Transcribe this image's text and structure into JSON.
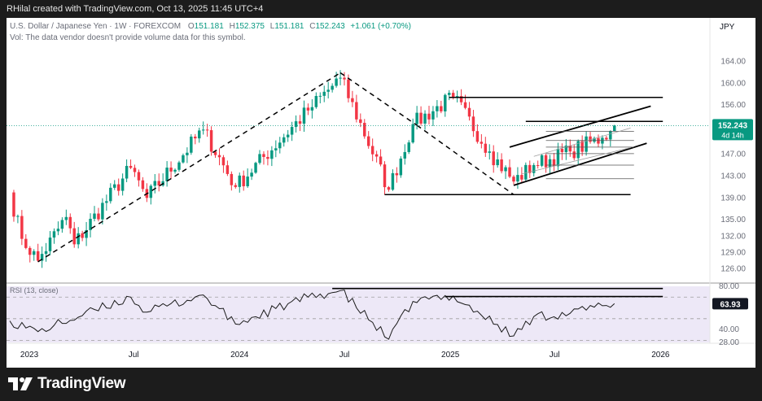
{
  "attribution": "RHilal created with TradingView.com, Oct 13, 2025 11:45 UTC+4",
  "brand": {
    "name": "TradingView",
    "logo_icon": "tradingview-logo-icon"
  },
  "legend": {
    "symbol": "U.S. Dollar / Japanese Yen · 1W · FOREXCOM",
    "o_label": "O",
    "o_value": "151.181",
    "h_label": "H",
    "h_value": "152.375",
    "l_label": "L",
    "l_value": "151.181",
    "c_label": "C",
    "c_value": "152.243",
    "change": "+1.061 (+0.70%)",
    "vol_note": "Vol: The data vendor doesn't provide volume data for this symbol."
  },
  "currency": "JPY",
  "price_tag": {
    "value": "152.243",
    "countdown": "4d 14h"
  },
  "rsi_legend": "RSI (13, close)",
  "rsi_tag": "63.93",
  "colors": {
    "up": "#089981",
    "down": "#f23645",
    "line": "#000000",
    "rsi_bg": "#ede8f7",
    "tag": "#089981"
  },
  "chart_data": [
    {
      "type": "candlestick",
      "x_labels": [
        "2023",
        "Jul",
        "2024",
        "Jul",
        "2025",
        "Jul",
        "2026"
      ],
      "x_label_dates": [
        "2023-01-01",
        "2023-07-01",
        "2024-01-01",
        "2024-07-01",
        "2025-01-01",
        "2025-07-01",
        "2026-01-01"
      ],
      "y_ticks": [
        126.0,
        129.0,
        132.0,
        135.0,
        139.0,
        143.0,
        147.0,
        152.0,
        156.0,
        160.0,
        164.0
      ],
      "ylim": [
        124.0,
        166.0
      ],
      "xlim": [
        "2022-11-28",
        "2026-02-02"
      ],
      "anchors": [
        {
          "date": "2022-11-28",
          "close": 140.0
        },
        {
          "date": "2022-12-19",
          "close": 131.5
        },
        {
          "date": "2023-01-16",
          "close": 127.5
        },
        {
          "date": "2023-03-06",
          "close": 135.5
        },
        {
          "date": "2023-03-20",
          "close": 130.5
        },
        {
          "date": "2023-06-26",
          "close": 144.5
        },
        {
          "date": "2023-07-24",
          "close": 139.0
        },
        {
          "date": "2023-10-30",
          "close": 151.5
        },
        {
          "date": "2023-12-25",
          "close": 141.0
        },
        {
          "date": "2024-04-29",
          "close": 155.0
        },
        {
          "date": "2024-06-24",
          "close": 161.0
        },
        {
          "date": "2024-09-16",
          "close": 140.5
        },
        {
          "date": "2024-10-28",
          "close": 152.5
        },
        {
          "date": "2025-01-06",
          "close": 157.5
        },
        {
          "date": "2025-03-10",
          "close": 147.5
        },
        {
          "date": "2025-04-21",
          "close": 142.0
        },
        {
          "date": "2025-05-26",
          "close": 145.0
        },
        {
          "date": "2025-07-28",
          "close": 147.5
        },
        {
          "date": "2025-09-22",
          "close": 150.0
        },
        {
          "date": "2025-10-06",
          "close": 151.18
        }
      ],
      "last_candle": {
        "date": "2025-10-13",
        "open": 151.181,
        "high": 152.375,
        "low": 151.181,
        "close": 152.243
      },
      "current_price": 152.243,
      "annotations": {
        "diagonals": [
          {
            "from": [
              "2023-01-16",
              127.3
            ],
            "to": [
              "2024-06-24",
              161.9
            ],
            "style": "dashed"
          },
          {
            "from": [
              "2024-06-24",
              161.9
            ],
            "to": [
              "2024-11-04",
              152.3
            ],
            "style": "dashed"
          },
          {
            "from": [
              "2024-11-04",
              152.3
            ],
            "to": [
              "2025-04-21",
              139.6
            ],
            "style": "dashed"
          }
        ],
        "channel": [
          {
            "from": [
              "2025-04-14",
              148.3
            ],
            "to": [
              "2025-12-15",
              155.8
            ]
          },
          {
            "from": [
              "2025-04-21",
              141.3
            ],
            "to": [
              "2025-12-08",
              149.0
            ]
          }
        ],
        "horizontals": [
          {
            "y": 157.4,
            "from": "2024-12-30",
            "to": "2026-01-05"
          },
          {
            "y": 153.0,
            "from": "2025-05-12",
            "to": "2026-01-05"
          },
          {
            "y": 139.6,
            "from": "2024-09-09",
            "to": "2025-11-10"
          }
        ],
        "fib_levels": {
          "from": "2025-06-16",
          "to": "2025-10-13",
          "levels": [
            151.2,
            149.5,
            148.3,
            147.1,
            145.0,
            142.5
          ]
        }
      }
    },
    {
      "type": "line",
      "name": "RSI (13, close)",
      "y_ticks": [
        28.0,
        40.0,
        80.0
      ],
      "ylim": [
        28.0,
        80.0
      ],
      "anchors": [
        {
          "date": "2022-11-28",
          "value": 48
        },
        {
          "date": "2023-01-16",
          "value": 38
        },
        {
          "date": "2023-06-26",
          "value": 70
        },
        {
          "date": "2023-07-24",
          "value": 56
        },
        {
          "date": "2023-10-30",
          "value": 72
        },
        {
          "date": "2023-12-25",
          "value": 45
        },
        {
          "date": "2024-04-29",
          "value": 70
        },
        {
          "date": "2024-06-24",
          "value": 76
        },
        {
          "date": "2024-09-16",
          "value": 31
        },
        {
          "date": "2024-10-28",
          "value": 66
        },
        {
          "date": "2025-01-06",
          "value": 71
        },
        {
          "date": "2025-04-21",
          "value": 34
        },
        {
          "date": "2025-05-26",
          "value": 52
        },
        {
          "date": "2025-07-28",
          "value": 55
        },
        {
          "date": "2025-09-22",
          "value": 62
        },
        {
          "date": "2025-10-13",
          "value": 63.93
        }
      ],
      "last_value": 63.93,
      "resistance_lines": [
        {
          "y": 78.0,
          "from": "2024-06-10",
          "to": "2026-01-05"
        },
        {
          "y": 70.5,
          "from": "2024-12-23",
          "to": "2026-01-05"
        }
      ]
    }
  ]
}
